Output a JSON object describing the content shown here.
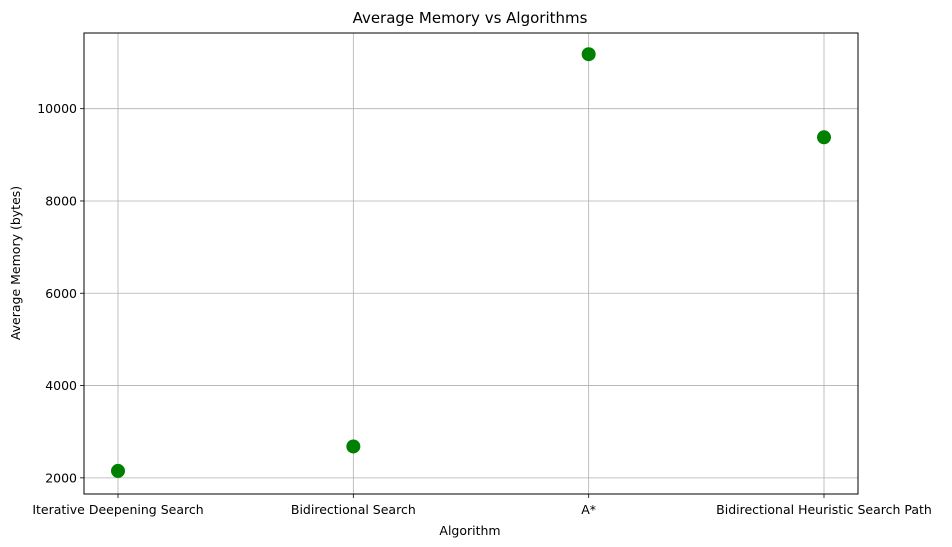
{
  "chart_data": {
    "type": "scatter",
    "title": "Average Memory vs Algorithms",
    "xlabel": "Algorithm",
    "ylabel": "Average Memory (bytes)",
    "categories": [
      "Iterative Deepening Search",
      "Bidirectional Search",
      "A*",
      "Bidirectional Heuristic Search Path"
    ],
    "values": [
      2150,
      2680,
      11180,
      9380
    ],
    "ylim": [
      1650,
      11640
    ],
    "yticks": [
      2000,
      4000,
      6000,
      8000,
      10000
    ],
    "grid": true,
    "marker_color": "#008000"
  }
}
